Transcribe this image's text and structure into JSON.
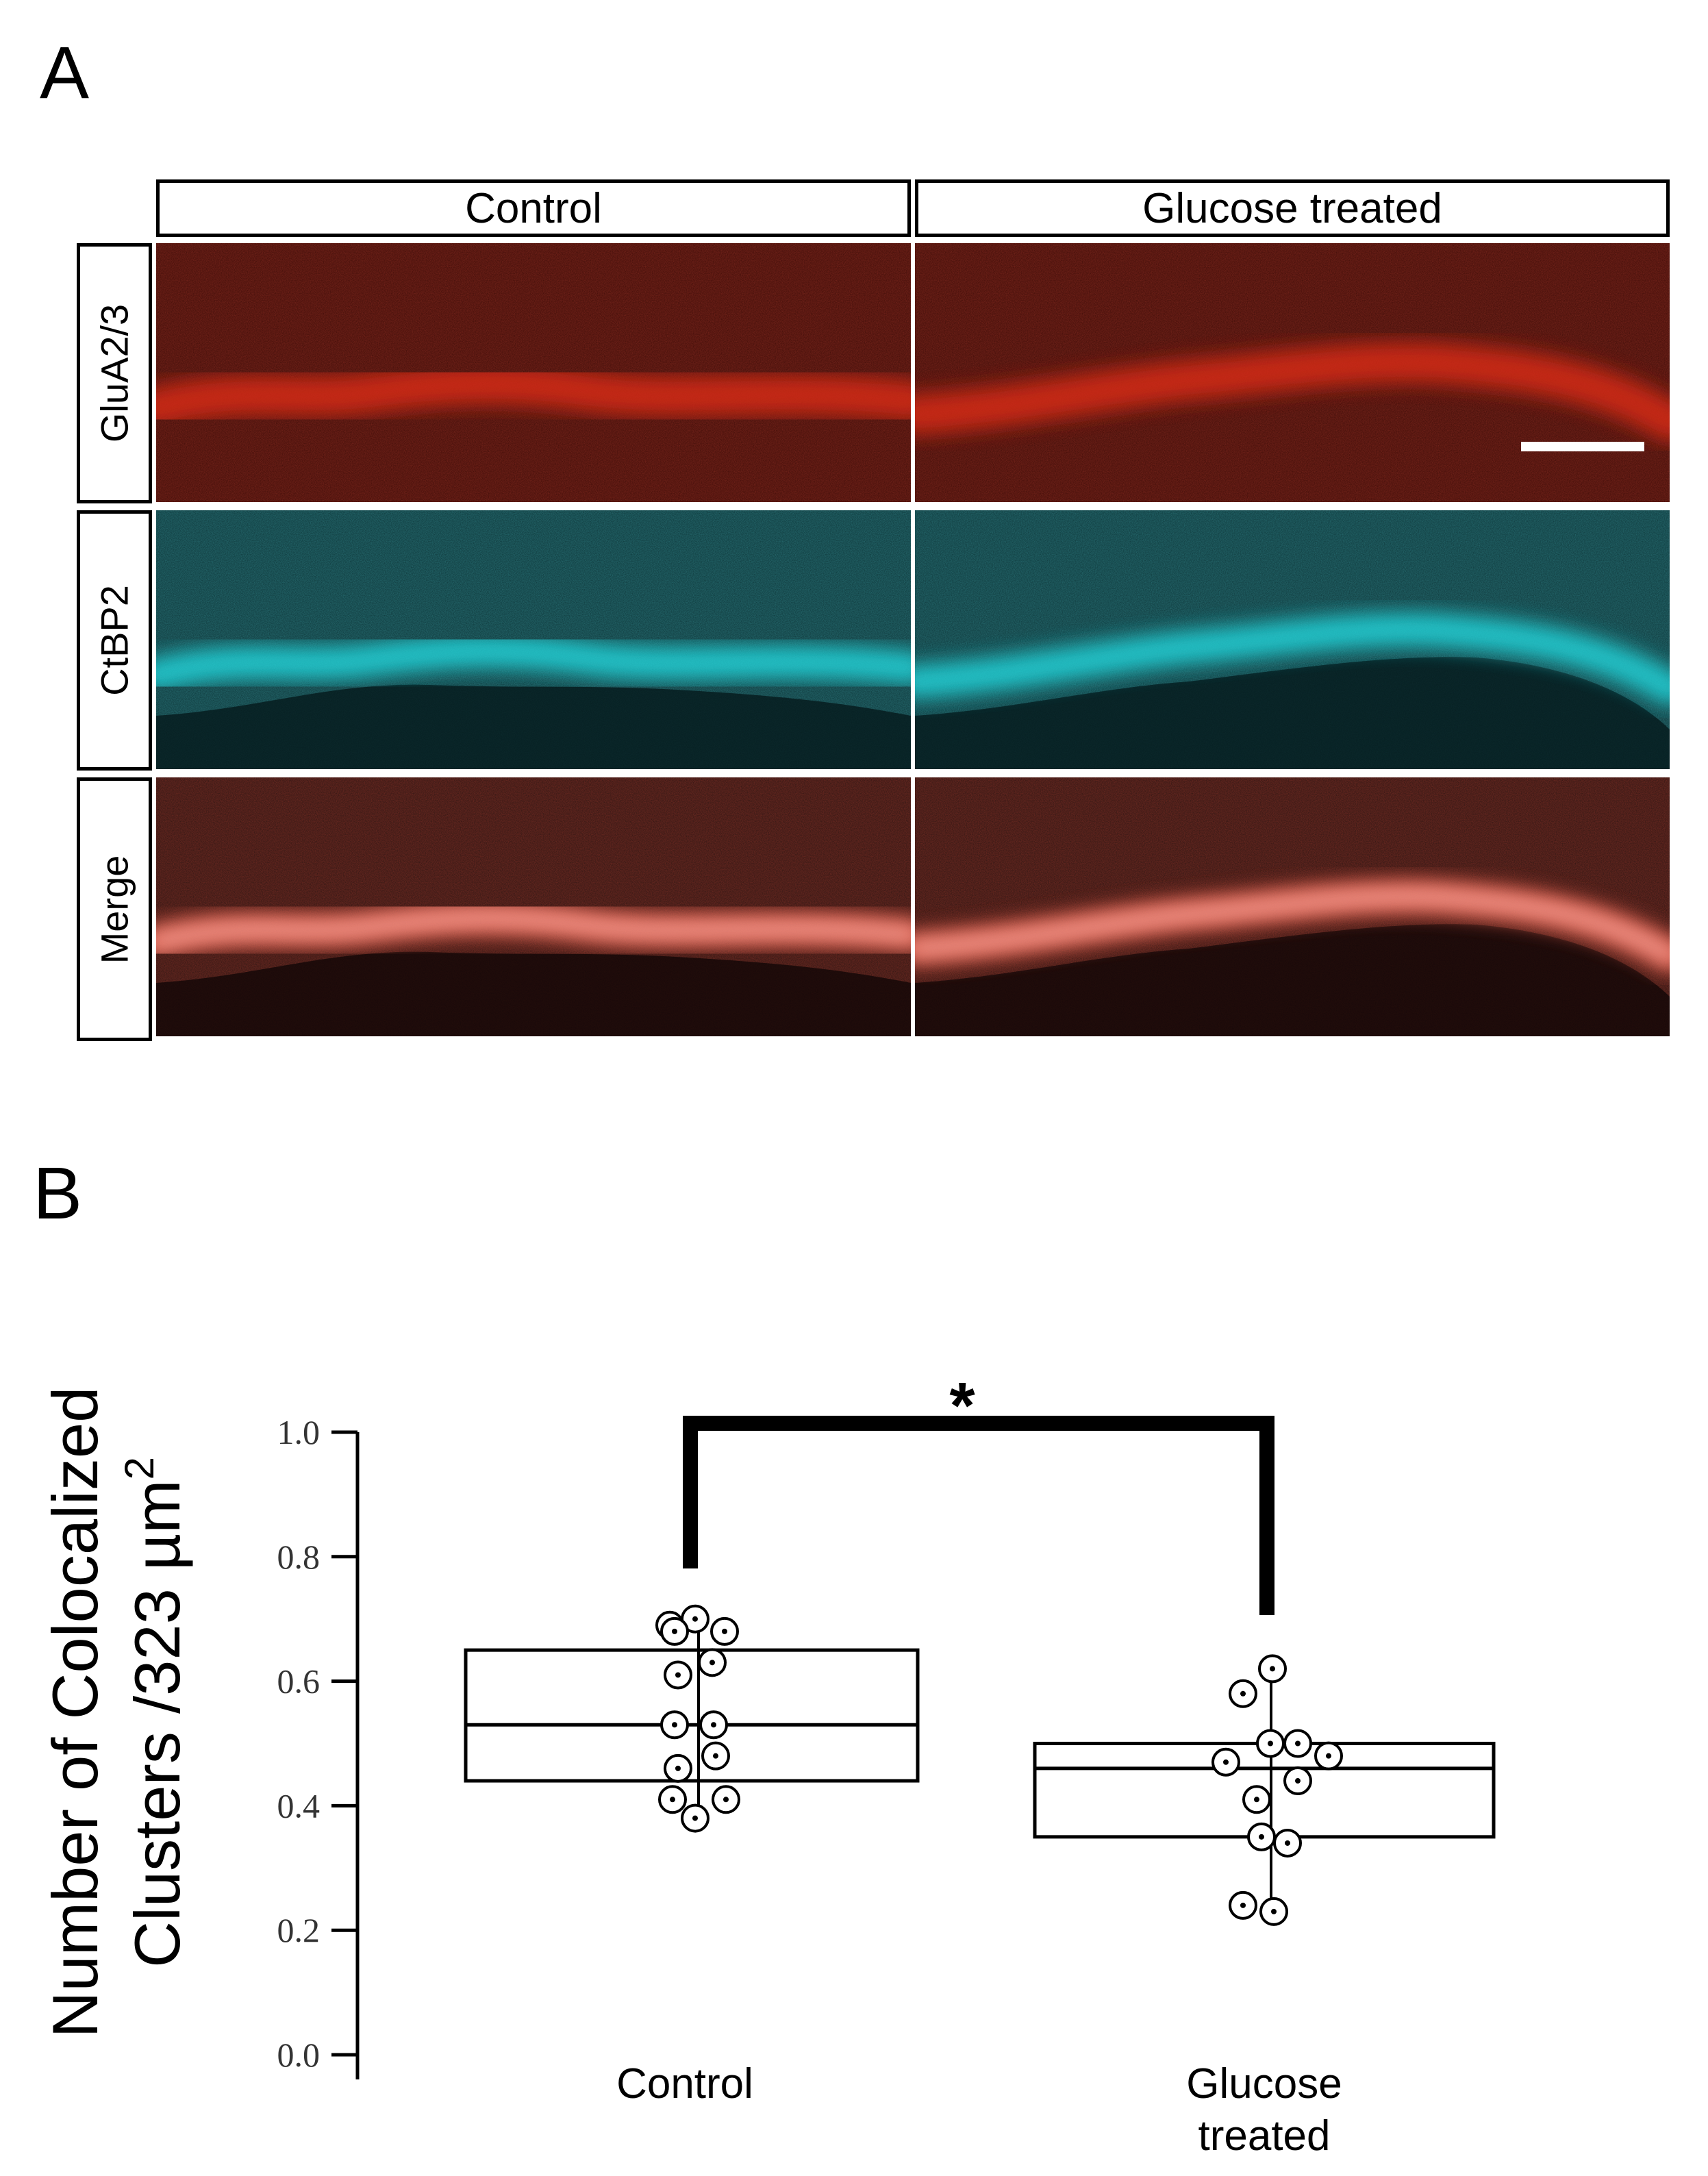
{
  "panels": {
    "a_label": "A",
    "b_label": "B"
  },
  "micrograph": {
    "columns": [
      "Control",
      "Glucose treated"
    ],
    "rows": [
      "GluA2/3",
      "CtBP2",
      "Merge"
    ],
    "colors": {
      "red_channel": "#d42a12",
      "cyan_channel": "#20d0d6",
      "background": "#160404"
    }
  },
  "chart_data": {
    "type": "box",
    "title": "",
    "ylabel_line1": "Number of Colocalized",
    "ylabel_line2_prefix": "Clusters /323 ",
    "ylabel_unit": "µm",
    "ylabel_exponent": "2",
    "ylim": [
      0,
      1.0
    ],
    "yticks": [
      0.0,
      0.2,
      0.4,
      0.6,
      0.8,
      1.0
    ],
    "ytick_labels": [
      "0.0",
      "0.2",
      "0.4",
      "0.6",
      "0.8",
      "1.0"
    ],
    "significance": "*",
    "series": [
      {
        "name": "Control",
        "box": {
          "q1": 0.44,
          "median": 0.53,
          "q3": 0.65,
          "whisker_low": 0.38,
          "whisker_high": 0.7
        },
        "points": [
          0.7,
          0.69,
          0.68,
          0.68,
          0.63,
          0.61,
          0.53,
          0.53,
          0.48,
          0.46,
          0.41,
          0.41,
          0.38
        ]
      },
      {
        "name": "Glucose\ntreated",
        "box": {
          "q1": 0.35,
          "median": 0.46,
          "q3": 0.5,
          "whisker_low": 0.23,
          "whisker_high": 0.62
        },
        "points": [
          0.62,
          0.58,
          0.5,
          0.5,
          0.48,
          0.47,
          0.44,
          0.41,
          0.35,
          0.34,
          0.24,
          0.23
        ]
      }
    ]
  }
}
